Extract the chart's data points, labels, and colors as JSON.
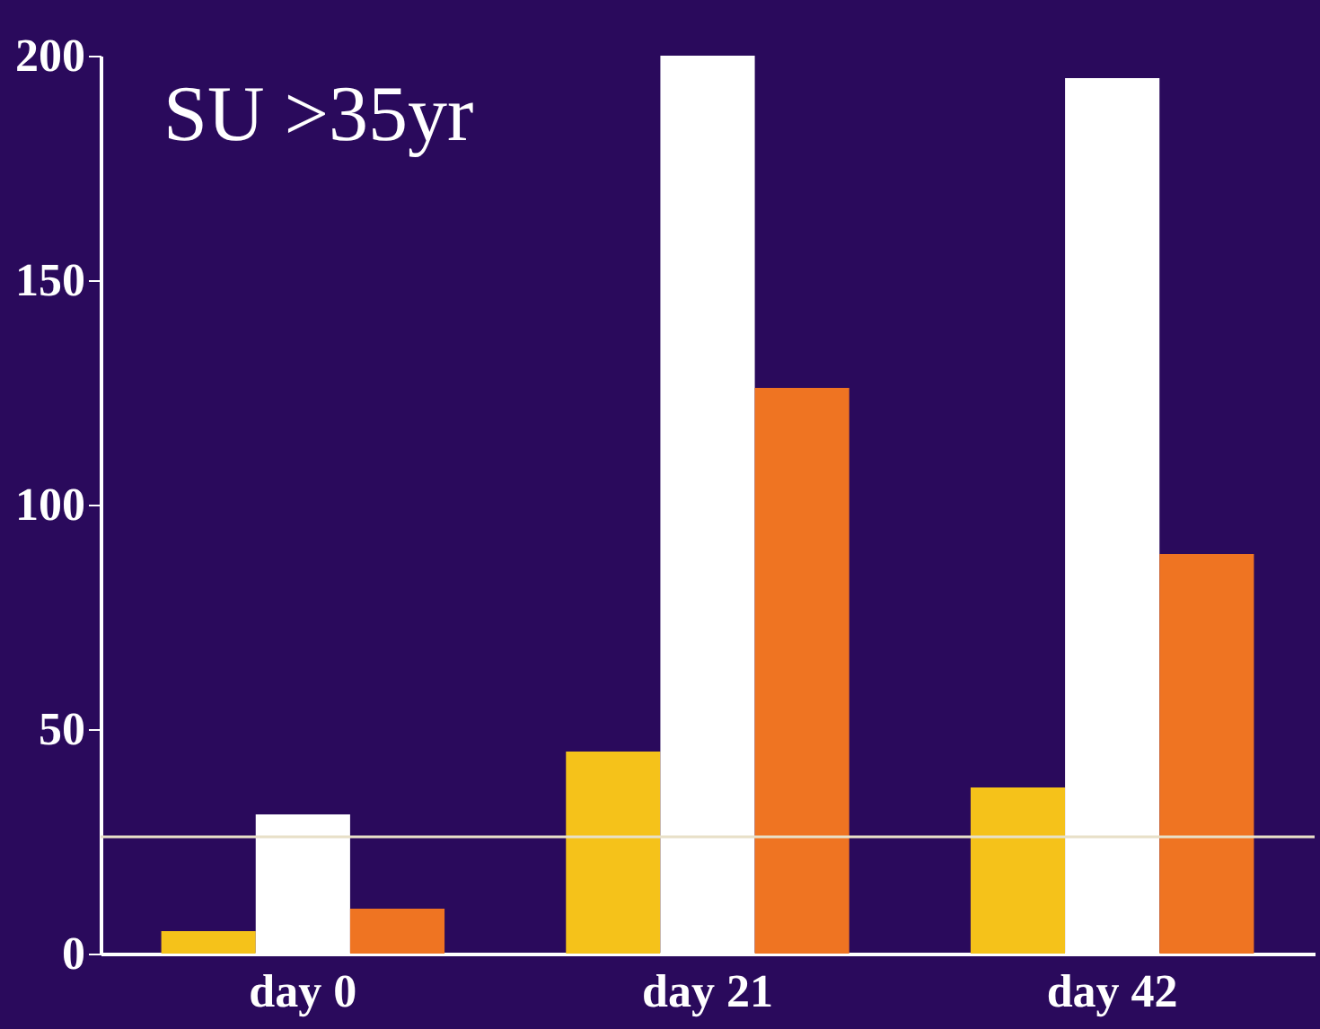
{
  "chart_data": {
    "type": "bar",
    "categories": [
      "day 0",
      "day 21",
      "day 42"
    ],
    "series": [
      {
        "color": "#f5c21a",
        "values": [
          5,
          45,
          37
        ]
      },
      {
        "color": "#ffffff",
        "values": [
          31,
          200,
          195
        ]
      },
      {
        "color": "#ef7422",
        "values": [
          10,
          126,
          89
        ]
      }
    ],
    "ylim": [
      0,
      200
    ],
    "yticks": [
      0,
      50,
      100,
      150,
      200
    ],
    "grid": false,
    "ref_lines": [
      {
        "axis": "y",
        "value": 26,
        "color": "#e8e0c8"
      }
    ],
    "annotations": [
      "SU >35yr"
    ]
  }
}
